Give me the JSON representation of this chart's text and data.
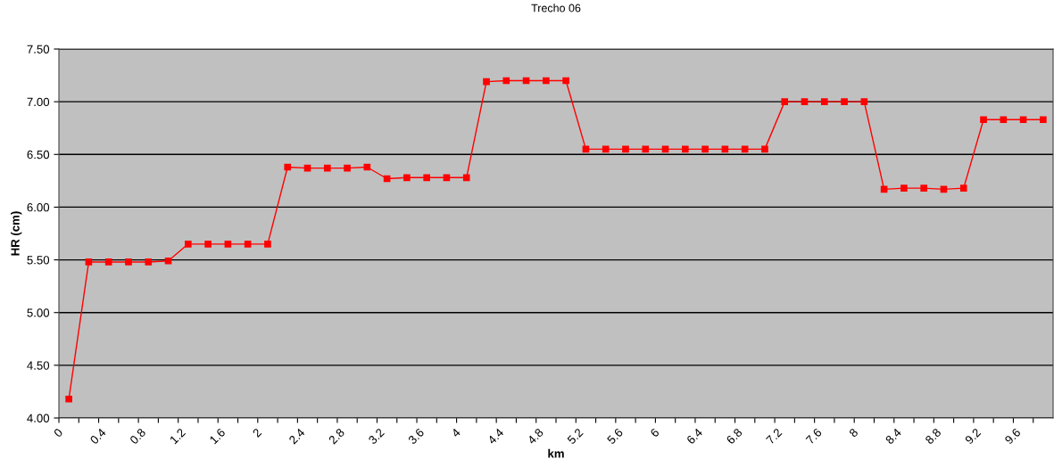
{
  "chart_data": {
    "type": "line",
    "title": "Trecho 06",
    "xlabel": "km",
    "ylabel": "HR (cm)",
    "x": [
      0.1,
      0.3,
      0.5,
      0.7,
      0.9,
      1.1,
      1.3,
      1.5,
      1.7,
      1.9,
      2.1,
      2.3,
      2.5,
      2.7,
      2.9,
      3.1,
      3.3,
      3.5,
      3.7,
      3.9,
      4.1,
      4.3,
      4.5,
      4.7,
      4.9,
      5.1,
      5.3,
      5.5,
      5.7,
      5.9,
      6.1,
      6.3,
      6.5,
      6.7,
      6.9,
      7.1,
      7.3,
      7.5,
      7.7,
      7.9,
      8.1,
      8.3,
      8.5,
      8.7,
      8.9,
      9.1,
      9.3,
      9.5,
      9.7,
      9.9
    ],
    "series": [
      {
        "color": "#ff0000",
        "values": [
          4.18,
          5.48,
          5.48,
          5.48,
          5.48,
          5.49,
          5.65,
          5.65,
          5.65,
          5.65,
          5.65,
          6.38,
          6.37,
          6.37,
          6.37,
          6.38,
          6.27,
          6.28,
          6.28,
          6.28,
          6.28,
          7.19,
          7.2,
          7.2,
          7.2,
          7.2,
          6.55,
          6.55,
          6.55,
          6.55,
          6.55,
          6.55,
          6.55,
          6.55,
          6.55,
          6.55,
          7.0,
          7.0,
          7.0,
          7.0,
          7.0,
          6.17,
          6.18,
          6.18,
          6.17,
          6.18,
          6.83,
          6.83,
          6.83,
          6.83
        ]
      }
    ],
    "xlim": [
      0,
      10
    ],
    "xticks": [
      0,
      {
        "value": 0.2,
        "label": null
      },
      0.4,
      {
        "value": 0.6,
        "label": null
      },
      0.8,
      {
        "value": 1.0,
        "label": null
      },
      1.2,
      {
        "value": 1.4,
        "label": null
      },
      1.6,
      {
        "value": 1.8,
        "label": null
      },
      2,
      {
        "value": 2.2,
        "label": null
      },
      2.4,
      {
        "value": 2.6,
        "label": null
      },
      2.8,
      {
        "value": 3.0,
        "label": null
      },
      3.2,
      {
        "value": 3.4,
        "label": null
      },
      3.6,
      {
        "value": 3.8,
        "label": null
      },
      4,
      {
        "value": 4.2,
        "label": null
      },
      4.4,
      {
        "value": 4.6,
        "label": null
      },
      4.8,
      {
        "value": 5.0,
        "label": null
      },
      5.2,
      {
        "value": 5.4,
        "label": null
      },
      5.6,
      {
        "value": 5.8,
        "label": null
      },
      6,
      {
        "value": 6.2,
        "label": null
      },
      6.4,
      {
        "value": 6.6,
        "label": null
      },
      6.8,
      {
        "value": 7.0,
        "label": null
      },
      7.2,
      {
        "value": 7.4,
        "label": null
      },
      7.6,
      {
        "value": 7.8,
        "label": null
      },
      8,
      {
        "value": 8.2,
        "label": null
      },
      8.4,
      {
        "value": 8.6,
        "label": null
      },
      8.8,
      {
        "value": 9.0,
        "label": null
      },
      9.2,
      {
        "value": 9.4,
        "label": null
      },
      9.6,
      {
        "value": 9.8,
        "label": null
      }
    ],
    "ylim": [
      4.0,
      7.5
    ],
    "yticks": [
      {
        "value": 4.0,
        "label": "4.00"
      },
      {
        "value": 4.5,
        "label": "4.50"
      },
      {
        "value": 5.0,
        "label": "5.00"
      },
      {
        "value": 5.5,
        "label": "5.50"
      },
      {
        "value": 6.0,
        "label": "6.00"
      },
      {
        "value": 6.5,
        "label": "6.50"
      },
      {
        "value": 7.0,
        "label": "7.00"
      },
      {
        "value": 7.5,
        "label": "7.50"
      }
    ],
    "grid": "y",
    "marker": "square",
    "line_style": "solid"
  }
}
